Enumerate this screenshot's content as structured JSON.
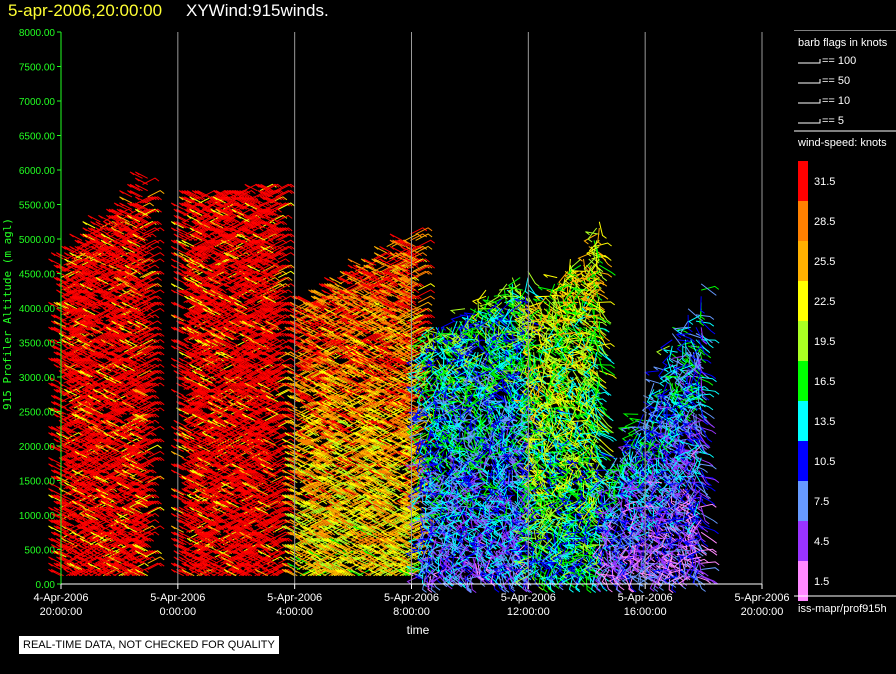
{
  "header": {
    "time_label": "5-apr-2006,20:00:00",
    "plot_name": "XYWind:915winds."
  },
  "footer": {
    "quality_note": "REAL-TIME DATA, NOT CHECKED FOR QUALITY",
    "source_label": "iss-mapr/prof915h"
  },
  "legend": {
    "barb_title": "barb flags in knots",
    "barbs": [
      {
        "label": "== 100",
        "value": 100
      },
      {
        "label": "== 50",
        "value": 50
      },
      {
        "label": "== 10",
        "value": 10
      },
      {
        "label": "== 5",
        "value": 5
      }
    ],
    "speed_title": "wind-speed: knots",
    "speed_bins": [
      {
        "label": "31.5",
        "color": "#ff0000"
      },
      {
        "label": "28.5",
        "color": "#ff8000"
      },
      {
        "label": "25.5",
        "color": "#ffb000"
      },
      {
        "label": "22.5",
        "color": "#ffff00"
      },
      {
        "label": "19.5",
        "color": "#aaff22"
      },
      {
        "label": "16.5",
        "color": "#00ff00"
      },
      {
        "label": "13.5",
        "color": "#00ffff"
      },
      {
        "label": "10.5",
        "color": "#0000ff"
      },
      {
        "label": "7.5",
        "color": "#6699ff"
      },
      {
        "label": "4.5",
        "color": "#9933ff"
      },
      {
        "label": "1.5",
        "color": "#ff88ff"
      }
    ]
  },
  "chart_data": {
    "type": "scatter",
    "title": "XYWind:915winds.",
    "xlabel": "time",
    "ylabel": "915 Profiler Altitude (m agl)",
    "ylim": [
      0,
      8000
    ],
    "y_ticks": [
      "0.00",
      "500.00",
      "1000.00",
      "1500.00",
      "2000.00",
      "2500.00",
      "3000.00",
      "3500.00",
      "4000.00",
      "4500.00",
      "5000.00",
      "5500.00",
      "6000.00",
      "6500.00",
      "7000.00",
      "7500.00",
      "8000.00"
    ],
    "x_ticks": [
      {
        "date": "4-Apr-2006",
        "time": "20:00:00"
      },
      {
        "date": "5-Apr-2006",
        "time": "0:00:00"
      },
      {
        "date": "5-Apr-2006",
        "time": "4:00:00"
      },
      {
        "date": "5-Apr-2006",
        "time": "8:00:00"
      },
      {
        "date": "5-Apr-2006",
        "time": "12:00:00"
      },
      {
        "date": "5-Apr-2006",
        "time": "16:00:00"
      },
      {
        "date": "5-Apr-2006",
        "time": "20:00:00"
      }
    ],
    "grid": "vertical",
    "color_encoding": "wind-speed (knots)",
    "series": [
      {
        "x_hours": [
          0.0,
          3.0
        ],
        "top_altitude": [
          4700,
          6000
        ],
        "dominant_speed": 31.5
      },
      {
        "x_hours": [
          4.2,
          7.5
        ],
        "top_altitude": [
          5600,
          5800
        ],
        "dominant_speed": 31.5
      },
      {
        "x_hours": [
          8.0,
          12.3
        ],
        "top_altitude": [
          4000,
          5300
        ],
        "dominant_speed": 28.5
      },
      {
        "x_hours": [
          12.3,
          16.0
        ],
        "top_altitude": [
          3600,
          4700
        ],
        "dominant_speed": 13.5
      },
      {
        "x_hours": [
          16.0,
          18.5
        ],
        "top_altitude": [
          4000,
          5300
        ],
        "dominant_speed": 19.5
      },
      {
        "x_hours": [
          18.5,
          22.0
        ],
        "top_altitude": [
          1500,
          4800
        ],
        "dominant_speed": 10.5
      }
    ]
  }
}
